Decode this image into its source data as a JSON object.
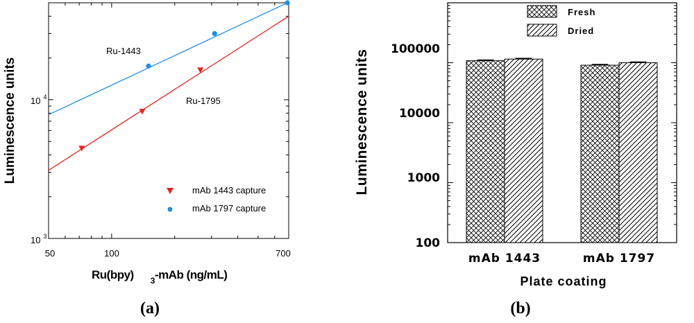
{
  "chart_data": [
    {
      "panel": "a",
      "type": "scatter",
      "caption": "(a)",
      "scale": "log-log",
      "xlim": [
        50,
        700
      ],
      "ylim": [
        1000,
        50000
      ],
      "x_ticks": [
        "50",
        "100",
        "700"
      ],
      "y_ticks": [
        {
          "base": "10",
          "exp": "3"
        },
        {
          "base": "10",
          "exp": "4"
        }
      ],
      "xlabel": {
        "main": "Ru(bpy)",
        "sub": "3",
        "rest": "-mAb (ng/mL)"
      },
      "ylabel": "Luminescence units",
      "legend": [
        {
          "label": "mAb 1443 capture",
          "marker": "triangle-down",
          "color": "#e8231c"
        },
        {
          "label": "mAb 1797 capture",
          "marker": "circle",
          "color": "#1e8fe6"
        }
      ],
      "annotations": [
        {
          "text": "Ru-1443",
          "series": "mAb 1797 capture"
        },
        {
          "text": "Ru-1795",
          "series": "mAb 1443 capture"
        }
      ],
      "series": [
        {
          "name": "mAb 1443 capture",
          "color": "#e8231c",
          "marker": "triangle-down",
          "points": [
            {
              "x": 72,
              "y": 4500
            },
            {
              "x": 140,
              "y": 8300
            },
            {
              "x": 265,
              "y": 16500
            }
          ],
          "fit": {
            "x": [
              50,
              700
            ],
            "y": [
              3100,
              40000
            ]
          }
        },
        {
          "name": "mAb 1797 capture",
          "color": "#1e8fe6",
          "marker": "circle",
          "points": [
            {
              "x": 150,
              "y": 17500
            },
            {
              "x": 310,
              "y": 30000
            },
            {
              "x": 690,
              "y": 50000
            }
          ],
          "fit": {
            "x": [
              50,
              690
            ],
            "y": [
              7800,
              50000
            ]
          }
        }
      ]
    },
    {
      "panel": "b",
      "type": "bar",
      "caption": "(b)",
      "scale": "log-y",
      "ylim": [
        100,
        1000000
      ],
      "y_ticks": [
        "100",
        "1000",
        "10000",
        "100000"
      ],
      "categories": [
        "mAb 1443",
        "mAb 1797"
      ],
      "xlabel": "Plate coating",
      "ylabel": "Luminescence units",
      "series": [
        {
          "name": "Fresh",
          "pattern": "crosshatch",
          "values": [
            108000,
            91000
          ]
        },
        {
          "name": "Dried",
          "pattern": "diagonal",
          "values": [
            115000,
            100000
          ]
        }
      ]
    }
  ]
}
